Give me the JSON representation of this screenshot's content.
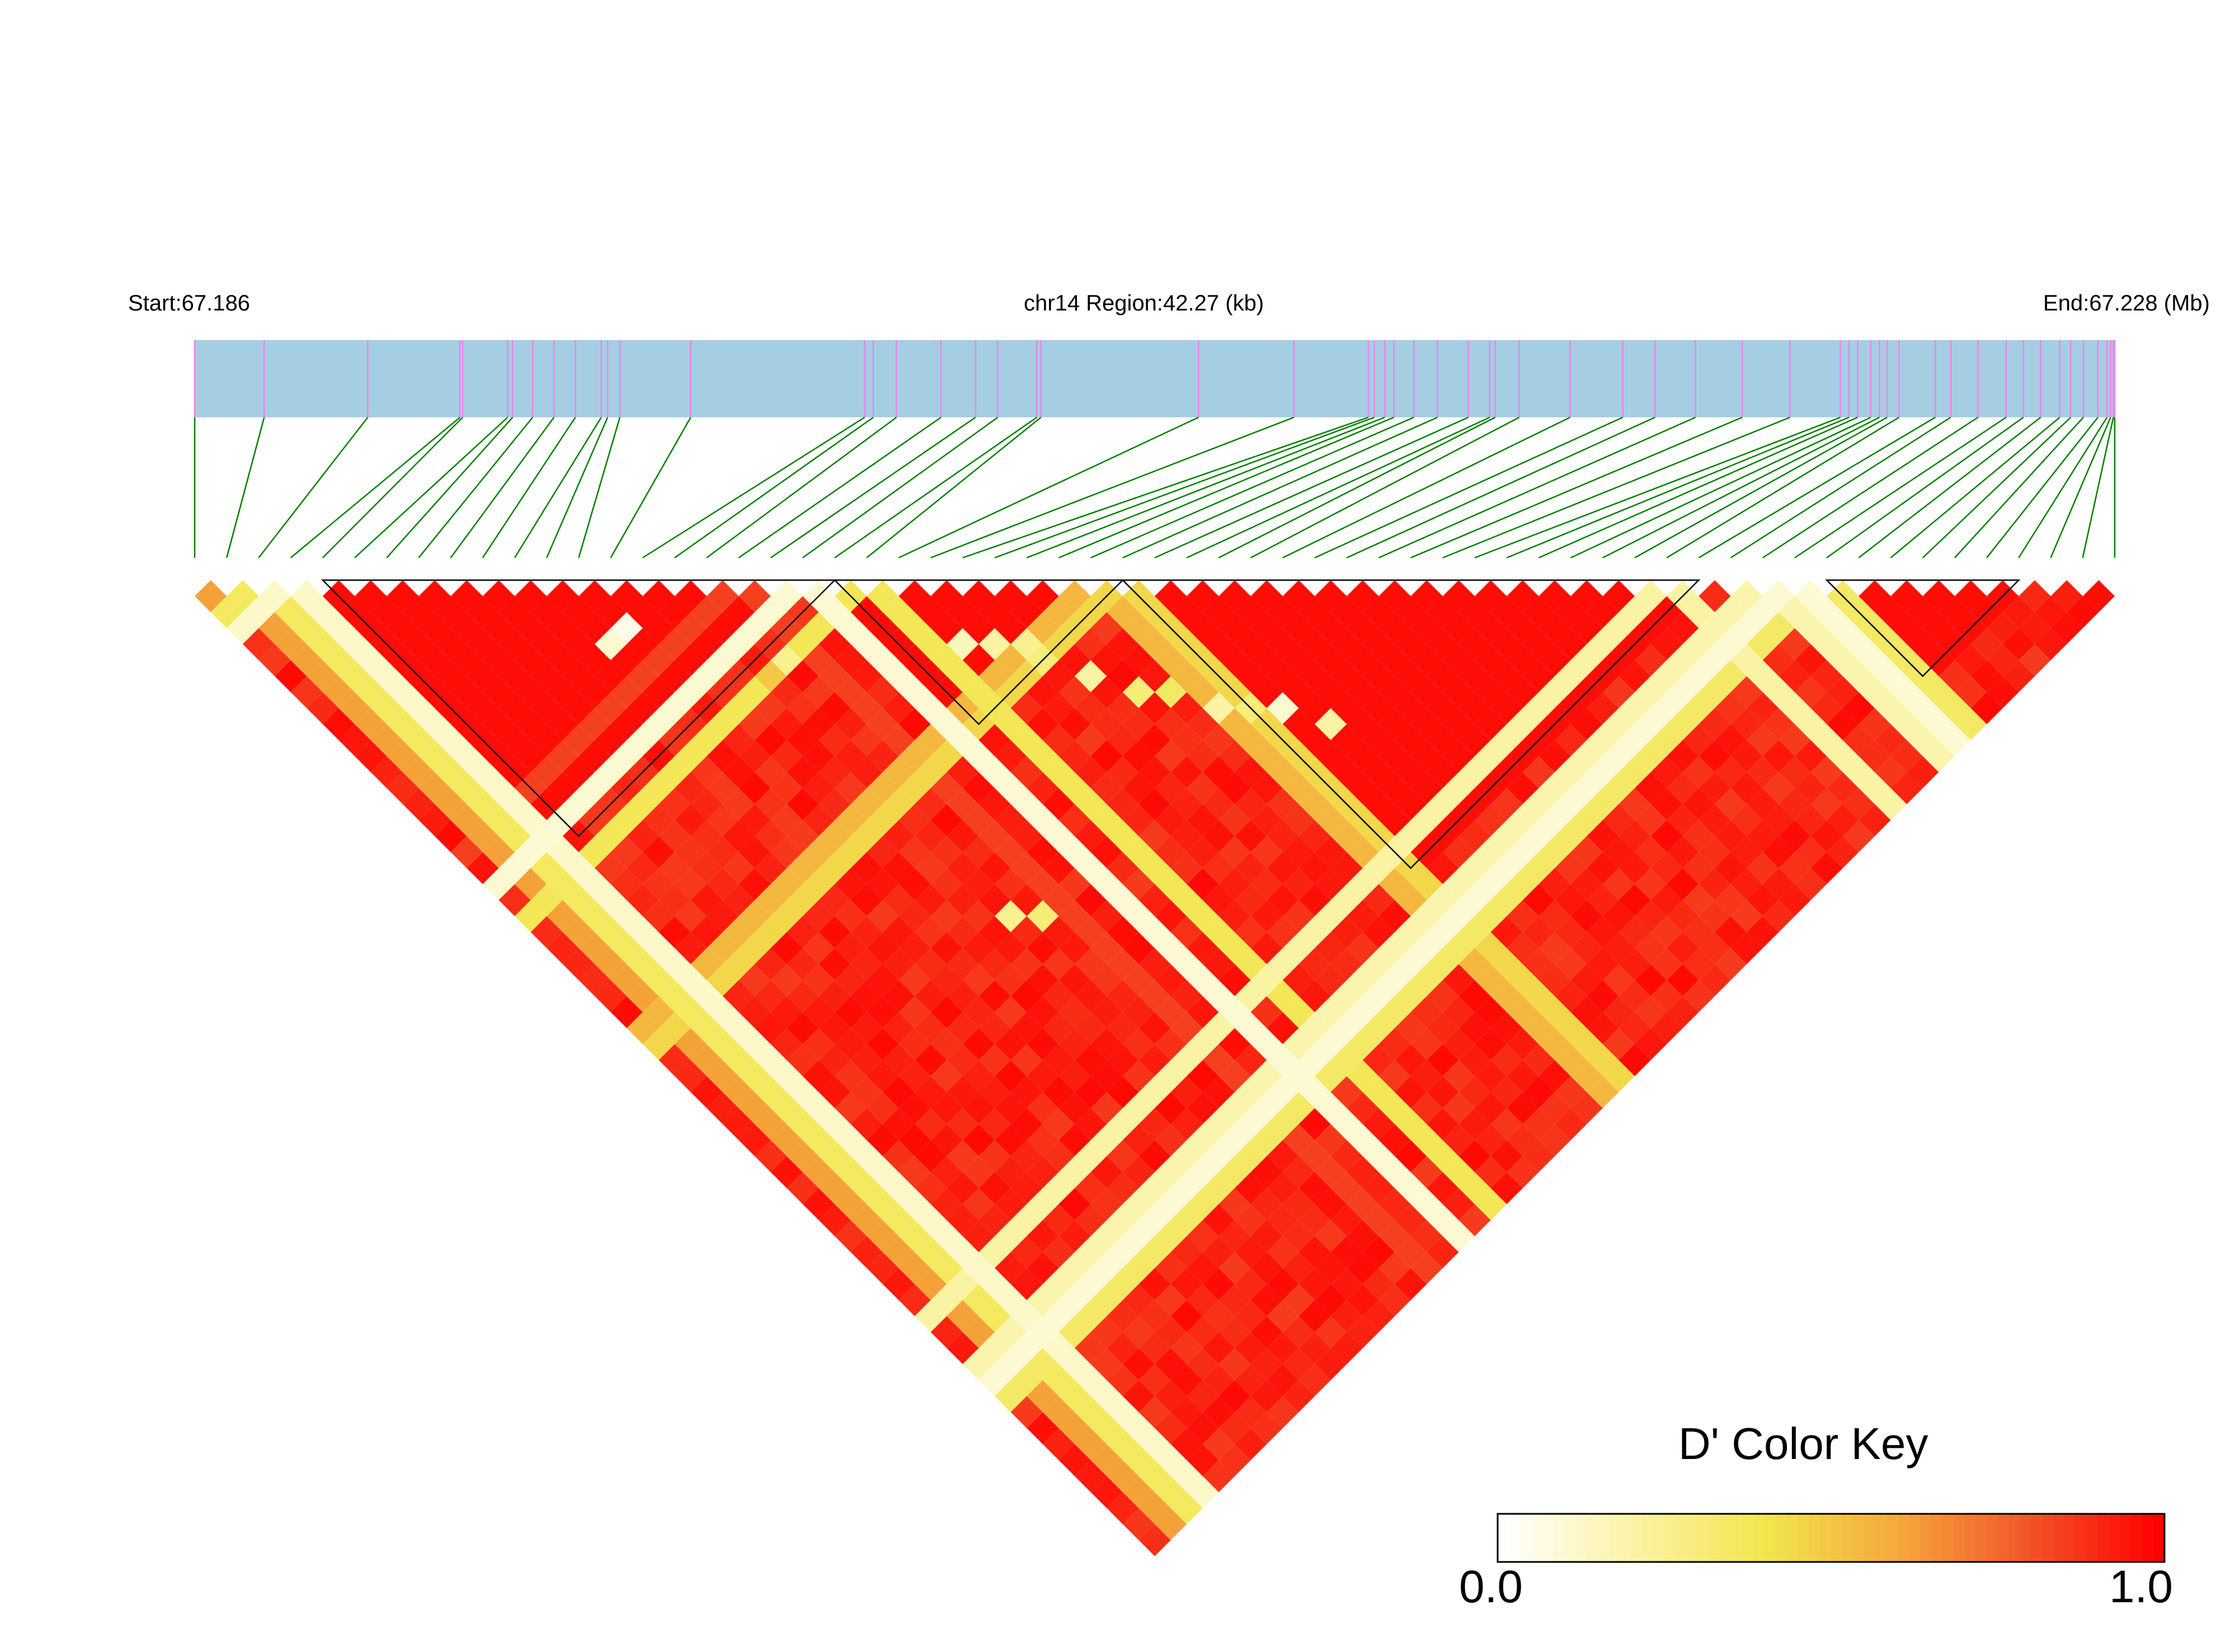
{
  "chart_data": {
    "type": "heatmap",
    "title": "chr14 Region:42.27 (kb)",
    "start_label": "Start:67.186",
    "end_label": "End:67.228 (Mb)",
    "region_chromosome": "chr14",
    "region_start_mb": 67.186,
    "region_end_mb": 67.228,
    "region_length_kb": 42.27,
    "n_snps": 61,
    "snp_positions_kb": [
      0.0,
      1.53,
      3.81,
      5.84,
      5.9,
      6.89,
      7.0,
      7.44,
      7.91,
      8.38,
      8.95,
      9.09,
      9.36,
      10.92,
      14.75,
      14.94,
      15.45,
      16.43,
      17.19,
      17.68,
      18.54,
      18.63,
      22.1,
      24.2,
      25.84,
      25.97,
      26.2,
      26.4,
      26.84,
      27.36,
      28.04,
      28.51,
      28.63,
      29.16,
      30.28,
      31.44,
      32.15,
      33.04,
      34.07,
      35.12,
      36.23,
      36.42,
      36.61,
      36.9,
      37.09,
      37.26,
      37.52,
      38.32,
      38.66,
      39.26,
      39.88,
      40.26,
      40.64,
      41.06,
      41.3,
      41.58,
      41.9,
      42.1,
      42.18,
      42.24,
      42.27
    ],
    "ld_blocks": [
      {
        "first_snp": 4,
        "last_snp": 20
      },
      {
        "first_snp": 20,
        "last_snp": 29
      },
      {
        "first_snp": 29,
        "last_snp": 47
      },
      {
        "first_snp": 51,
        "last_snp": 57
      }
    ],
    "low_d_prime_lines": [
      {
        "snp": 1,
        "d_prime": 0.62
      },
      {
        "snp": 2,
        "d_prime": 0.36
      },
      {
        "snp": 3,
        "d_prime": 0.12
      },
      {
        "snp": 17,
        "d_prime": 0.85
      },
      {
        "snp": 19,
        "d_prime": 0.1
      },
      {
        "snp": 21,
        "d_prime": 0.38
      },
      {
        "snp": 28,
        "d_prime": 0.55
      },
      {
        "snp": 29,
        "d_prime": 0.45
      },
      {
        "snp": 46,
        "d_prime": 0.2
      },
      {
        "snp": 49,
        "d_prime": 0.18
      },
      {
        "snp": 50,
        "d_prime": 0.1
      },
      {
        "snp": 51,
        "d_prime": 0.35
      }
    ],
    "low_d_prime_cells": [
      {
        "i": 11,
        "j": 15,
        "d_prime": 0.1
      },
      {
        "i": 12,
        "j": 15,
        "d_prime": 0.05
      },
      {
        "i": 16,
        "j": 21,
        "d_prime": 0.25
      },
      {
        "i": 15,
        "j": 21,
        "d_prime": 0.5
      },
      {
        "i": 22,
        "j": 26,
        "d_prime": 0.15
      },
      {
        "i": 23,
        "j": 27,
        "d_prime": 0.2
      },
      {
        "i": 24,
        "j": 28,
        "d_prime": 0.25
      },
      {
        "i": 24,
        "j": 29,
        "d_prime": 0.3
      },
      {
        "i": 25,
        "j": 31,
        "d_prime": 0.2
      },
      {
        "i": 26,
        "j": 33,
        "d_prime": 0.3
      },
      {
        "i": 27,
        "j": 34,
        "d_prime": 0.35
      },
      {
        "i": 28,
        "j": 36,
        "d_prime": 0.2
      },
      {
        "i": 29,
        "j": 37,
        "d_prime": 0.3
      },
      {
        "i": 30,
        "j": 38,
        "d_prime": 0.1
      },
      {
        "i": 31,
        "j": 40,
        "d_prime": 0.2
      },
      {
        "i": 15,
        "j": 36,
        "d_prime": 0.25
      },
      {
        "i": 16,
        "j": 37,
        "d_prime": 0.3
      }
    ],
    "color_key": {
      "title": "D' Color Key",
      "min_label": "0.0",
      "max_label": "1.0",
      "min": 0.0,
      "max": 1.0,
      "stops": [
        "#ffffff",
        "#fbf3a4",
        "#f2e64e",
        "#f5a93c",
        "#f2552a",
        "#ff0000"
      ]
    },
    "colors": {
      "region_bar": "#a6cee3",
      "snp_tick": "#ee82ee",
      "connector": "#008000",
      "block_outline": "#000000"
    }
  }
}
